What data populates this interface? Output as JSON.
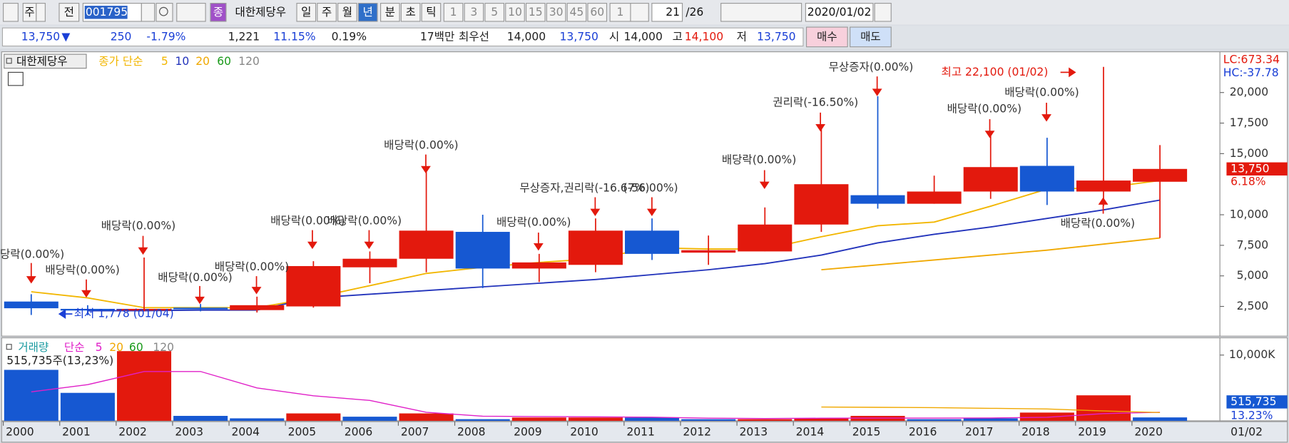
{
  "toolbar": {
    "items": [
      "주",
      "전",
      "001795",
      "종",
      "대한제당우",
      "일",
      "주",
      "월",
      "년",
      "분",
      "초",
      "틱",
      "1",
      "3",
      "5",
      "10",
      "15",
      "30",
      "45",
      "60",
      "1",
      "21",
      "/26",
      "2020/01/02"
    ]
  },
  "info_bar": {
    "items": [
      "13,750",
      "▼",
      "250",
      "-1.79%",
      "1,221",
      "11.15%",
      "0.19%",
      "17백만",
      "최우선",
      "14,000",
      "13,750",
      "시",
      "14,000",
      "고",
      "14,100",
      "저",
      "13,750"
    ],
    "buttons": [
      "매수",
      "매도"
    ]
  },
  "chart_data": {
    "type": "candlestick",
    "legend_name": "대한제당우",
    "ma_label": "종가 단순",
    "categories": [
      "2000",
      "2001",
      "2002",
      "2003",
      "2004",
      "2005",
      "2006",
      "2007",
      "2008",
      "2009",
      "2010",
      "2011",
      "2012",
      "2013",
      "2014",
      "2015",
      "2016",
      "2017",
      "2018",
      "2019",
      "2020"
    ],
    "x_end_label": "01/02",
    "open": [
      2900,
      2300,
      2250,
      2400,
      2200,
      2500,
      5700,
      6400,
      8600,
      5600,
      5900,
      8700,
      6900,
      7000,
      9200,
      11600,
      10900,
      11900,
      14000,
      11900,
      12700
    ],
    "high": [
      3500,
      2600,
      6500,
      2700,
      3300,
      6200,
      7000,
      13500,
      10000,
      6800,
      9700,
      9700,
      8300,
      10600,
      17000,
      19700,
      13200,
      16800,
      16300,
      22100,
      15700
    ],
    "low": [
      1800,
      1778,
      2100,
      2100,
      2000,
      2400,
      4400,
      5300,
      4000,
      4500,
      5300,
      6300,
      5900,
      7000,
      8600,
      10500,
      10900,
      11300,
      10800,
      10700,
      8100
    ],
    "close": [
      2350,
      2250,
      2300,
      2350,
      2600,
      5800,
      6400,
      8700,
      5600,
      6100,
      8700,
      6800,
      7100,
      9200,
      12500,
      10900,
      11900,
      13900,
      11900,
      12800,
      13750
    ],
    "up_color": "#e3190d",
    "down_color": "#1658d2",
    "ylim": [
      0,
      23200
    ],
    "yticks": [
      {
        "value": 2500,
        "label": "2,500"
      },
      {
        "value": 5000,
        "label": "5,000"
      },
      {
        "value": 7500,
        "label": "7,500"
      },
      {
        "value": 10000,
        "label": "10,000"
      },
      {
        "value": 15000,
        "label": "15,000"
      },
      {
        "value": 17500,
        "label": "17,500"
      },
      {
        "value": 20000,
        "label": "20,000"
      }
    ],
    "moving_averages": [
      {
        "name": "5",
        "color": "#f2b600",
        "values": [
          3700,
          3200,
          2400,
          2400,
          2400,
          3200,
          4200,
          5200,
          5700,
          6100,
          6400,
          7300,
          7200,
          7200,
          8200,
          9100,
          9400,
          10700,
          12100,
          12200,
          12800
        ]
      },
      {
        "name": "10",
        "color": "#2233bb",
        "values": [
          null,
          2150,
          2150,
          2200,
          2200,
          3200,
          3500,
          3800,
          4100,
          4400,
          4700,
          5100,
          5500,
          6000,
          6700,
          7700,
          8400,
          9000,
          9700,
          10400,
          11200
        ]
      },
      {
        "name": "20",
        "color": "#f0a800",
        "values": [
          null,
          null,
          null,
          null,
          null,
          null,
          null,
          null,
          null,
          null,
          null,
          null,
          null,
          null,
          5500,
          5900,
          6300,
          6700,
          7100,
          7600,
          8100
        ]
      },
      {
        "name": "60",
        "color": "#1a9a1a"
      },
      {
        "name": "120",
        "color": "#888888"
      }
    ],
    "annotations": [
      "당락(0.00%)",
      "배당락(0.00%)",
      "배당락(0.00%)",
      "배당락(0.00%)",
      "배당락(0.00%)",
      "배당락(0.00%)",
      "배당락(0.00%)",
      "배당락(0.00%)",
      "배당락(0.00%)",
      "무상증자,권리락(-16.67%)",
      "(-56.00%)",
      "배당락(0.00%)",
      "권리락(-16.50%)",
      "무상증자(0.00%)",
      "배당락(0.00%)",
      "배당락(0.00%)",
      "배당락(0.00%)"
    ],
    "high_label": "최고 22,100 (01/02)",
    "low_label": "최저 1,778 (01/04)",
    "lc_label": "LC:673.34",
    "hc_label": "HC:-37.78",
    "last_price": {
      "value": 13750,
      "label": "13,750"
    },
    "change_label": "6.18%",
    "volume": {
      "legend_name": "거래량",
      "ma_label": "단순",
      "info_label": "515,735주(13,23%)",
      "values": [
        7750,
        4250,
        10600,
        750,
        375,
        1125,
        625,
        1125,
        250,
        500,
        500,
        500,
        250,
        250,
        375,
        750,
        250,
        375,
        1250,
        3875,
        515.735
      ],
      "value_labels": [
        null,
        null,
        null,
        null,
        null,
        null,
        null,
        null,
        null,
        null,
        null,
        null,
        null,
        null,
        null,
        null,
        null,
        null,
        null,
        null,
        "515,735"
      ],
      "colors": [
        "#1658d2",
        "#1658d2",
        "#e3190d",
        "#1658d2",
        "#1658d2",
        "#e3190d",
        "#1658d2",
        "#e3190d",
        "#1658d2",
        "#e3190d",
        "#e3190d",
        "#1658d2",
        "#1658d2",
        "#e3190d",
        "#e3190d",
        "#e3190d",
        "#1658d2",
        "#1658d2",
        "#e3190d",
        "#e3190d",
        "#1658d2"
      ],
      "ylim": [
        0,
        12500
      ],
      "yticks": [
        {
          "value": 10000,
          "label": "10,000K"
        }
      ],
      "change_label": "13.23%",
      "moving_averages": [
        {
          "name": "5",
          "color": "#e020c8",
          "values": [
            4400,
            5500,
            7500,
            7500,
            5000,
            3800,
            3100,
            1300,
            700,
            650,
            600,
            550,
            400,
            350,
            400,
            420,
            420,
            430,
            540,
            1100,
            1300
          ]
        },
        {
          "name": "20",
          "color": "#f0a800",
          "values": [
            null,
            null,
            null,
            null,
            null,
            null,
            null,
            null,
            null,
            null,
            null,
            null,
            null,
            null,
            2100,
            2050,
            2000,
            1900,
            1800,
            1500,
            1250
          ]
        },
        {
          "name": "60",
          "color": "#1a9a1a"
        },
        {
          "name": "120",
          "color": "#888888"
        }
      ]
    }
  }
}
